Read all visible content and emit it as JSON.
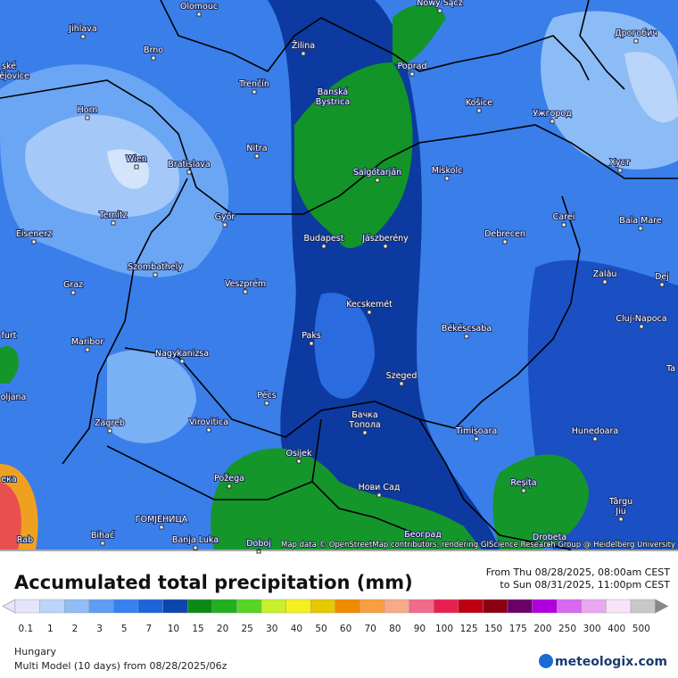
{
  "map": {
    "cities": [
      "Olomouc",
      "Nowy Sącz",
      "Jihlava",
      "Brno",
      "Žilina",
      "Poprad",
      "Дрогобич",
      "ské",
      "ějovice",
      "Horn",
      "Trenčín",
      "Banská",
      "Bystrica",
      "Košice",
      "Ужгород",
      "Nitra",
      "Wien",
      "Bratislava",
      "Salgótarján",
      "Miskolc",
      "Хуст",
      "Ternitz",
      "Győr",
      "Carei",
      "Baia Mare",
      "Eisenerz",
      "Budapest",
      "Jászberény",
      "Debrecen",
      "Szombathely",
      "Graz",
      "Veszprém",
      "Zalău",
      "Dej",
      "Kecskemét",
      "Cluj-Napoca",
      "Békéscsaba",
      "furt",
      "Maribor",
      "Paks",
      "Nagykanizsa",
      "Szeged",
      "oljana",
      "Pécs",
      "Бачка",
      "Топола",
      "Zagreb",
      "Virovitica",
      "Timișoara",
      "Hunedoara",
      "Osijek",
      "Požega",
      "Reșița",
      "Нови Сад",
      "Târgu",
      "Jiu",
      "ГОМЈЕНИЦА",
      "Bihać",
      "Banja Luka",
      "Doboj",
      "Београд",
      "Drobeta",
      "ека",
      "Rab",
      "Ta"
    ],
    "attribution": "Map data © OpenStreetMap contributors, rendering GIScience Research Group @ Heidelberg University"
  },
  "header": {
    "title": "Accumulated total precipitation (mm)",
    "from": "From Thu 08/28/2025, 08:00am CEST",
    "to": "to Sun 08/31/2025, 11:00pm CEST"
  },
  "legend": {
    "ticks": [
      0.1,
      1,
      2,
      3,
      5,
      7,
      10,
      15,
      20,
      25,
      30,
      40,
      50,
      60,
      70,
      80,
      90,
      100,
      125,
      150,
      175,
      200,
      250,
      300,
      400,
      500
    ],
    "colors": [
      "#e4e4fa",
      "#bcd4fa",
      "#90bcf8",
      "#5c9cf4",
      "#3482ee",
      "#1c64dc",
      "#0e44b0",
      "#0c8a18",
      "#20b020",
      "#58d424",
      "#c8f028",
      "#f4f020",
      "#e8c800",
      "#f08a00",
      "#f8a040",
      "#f8aa88",
      "#f06a8a",
      "#e82050",
      "#c00010",
      "#8c0014",
      "#6c0068",
      "#b000e0",
      "#d868f0",
      "#e8a8f0",
      "#f8e4f8",
      "#c8c8c8"
    ]
  },
  "footer": {
    "region": "Hungary",
    "model": "Multi Model (10 days) from 08/28/2025/06z",
    "brand": "meteologix.com"
  }
}
